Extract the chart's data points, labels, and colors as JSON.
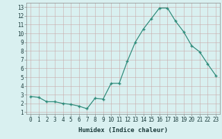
{
  "x": [
    0,
    1,
    2,
    3,
    4,
    5,
    6,
    7,
    8,
    9,
    10,
    11,
    12,
    13,
    14,
    15,
    16,
    17,
    18,
    19,
    20,
    21,
    22,
    23
  ],
  "y": [
    2.8,
    2.7,
    2.2,
    2.2,
    2.0,
    1.9,
    1.7,
    1.4,
    2.6,
    2.5,
    4.3,
    4.3,
    6.8,
    9.0,
    10.5,
    11.7,
    12.9,
    12.9,
    11.4,
    10.2,
    8.6,
    7.9,
    6.5,
    5.2
  ],
  "xlabel": "Humidex (Indice chaleur)",
  "xlim": [
    -0.5,
    23.5
  ],
  "ylim": [
    0.8,
    13.5
  ],
  "yticks": [
    1,
    2,
    3,
    4,
    5,
    6,
    7,
    8,
    9,
    10,
    11,
    12,
    13
  ],
  "xticks": [
    0,
    1,
    2,
    3,
    4,
    5,
    6,
    7,
    8,
    9,
    10,
    11,
    12,
    13,
    14,
    15,
    16,
    17,
    18,
    19,
    20,
    21,
    22,
    23
  ],
  "line_color": "#2e8b7a",
  "bg_color": "#d9f0f0",
  "grid_color": "#b8d8d0",
  "font_color": "#1a3a3a",
  "tick_fontsize": 5.5,
  "xlabel_fontsize": 6.5
}
